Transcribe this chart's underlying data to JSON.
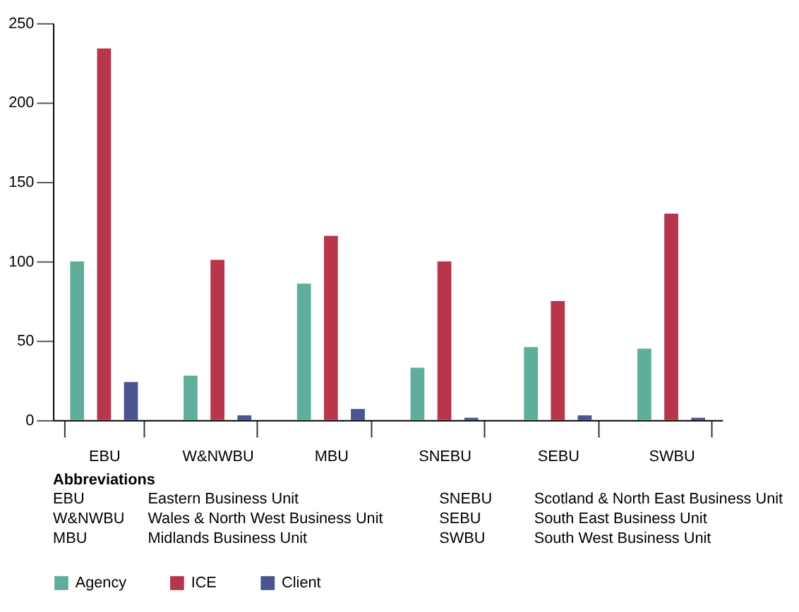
{
  "chart_data": {
    "type": "bar",
    "categories": [
      "EBU",
      "W&NWBU",
      "MBU",
      "SNEBU",
      "SEBU",
      "SWBU"
    ],
    "series": [
      {
        "name": "Agency",
        "color": "#5fae9c",
        "values": [
          100,
          28,
          86,
          33,
          46,
          45
        ]
      },
      {
        "name": "ICE",
        "color": "#b8364c",
        "values": [
          234,
          101,
          116,
          100,
          75,
          130
        ]
      },
      {
        "name": "Client",
        "color": "#4a5590",
        "values": [
          24,
          3,
          7,
          1.5,
          3,
          1.5
        ]
      }
    ],
    "ylim": [
      0,
      250
    ],
    "yticks": [
      0,
      50,
      100,
      150,
      200,
      250
    ],
    "grid": false,
    "legend": "bottom",
    "annotations": [
      "Abbreviations",
      "EBU",
      "Eastern Business Unit",
      "W&NWBU",
      "Wales & North West Business Unit",
      "MBU",
      "Midlands Business Unit",
      "SNEBU",
      "Scotland & North East Business Unit",
      "SEBU",
      "South East Business Unit",
      "SWBU",
      "South West Business Unit"
    ]
  }
}
